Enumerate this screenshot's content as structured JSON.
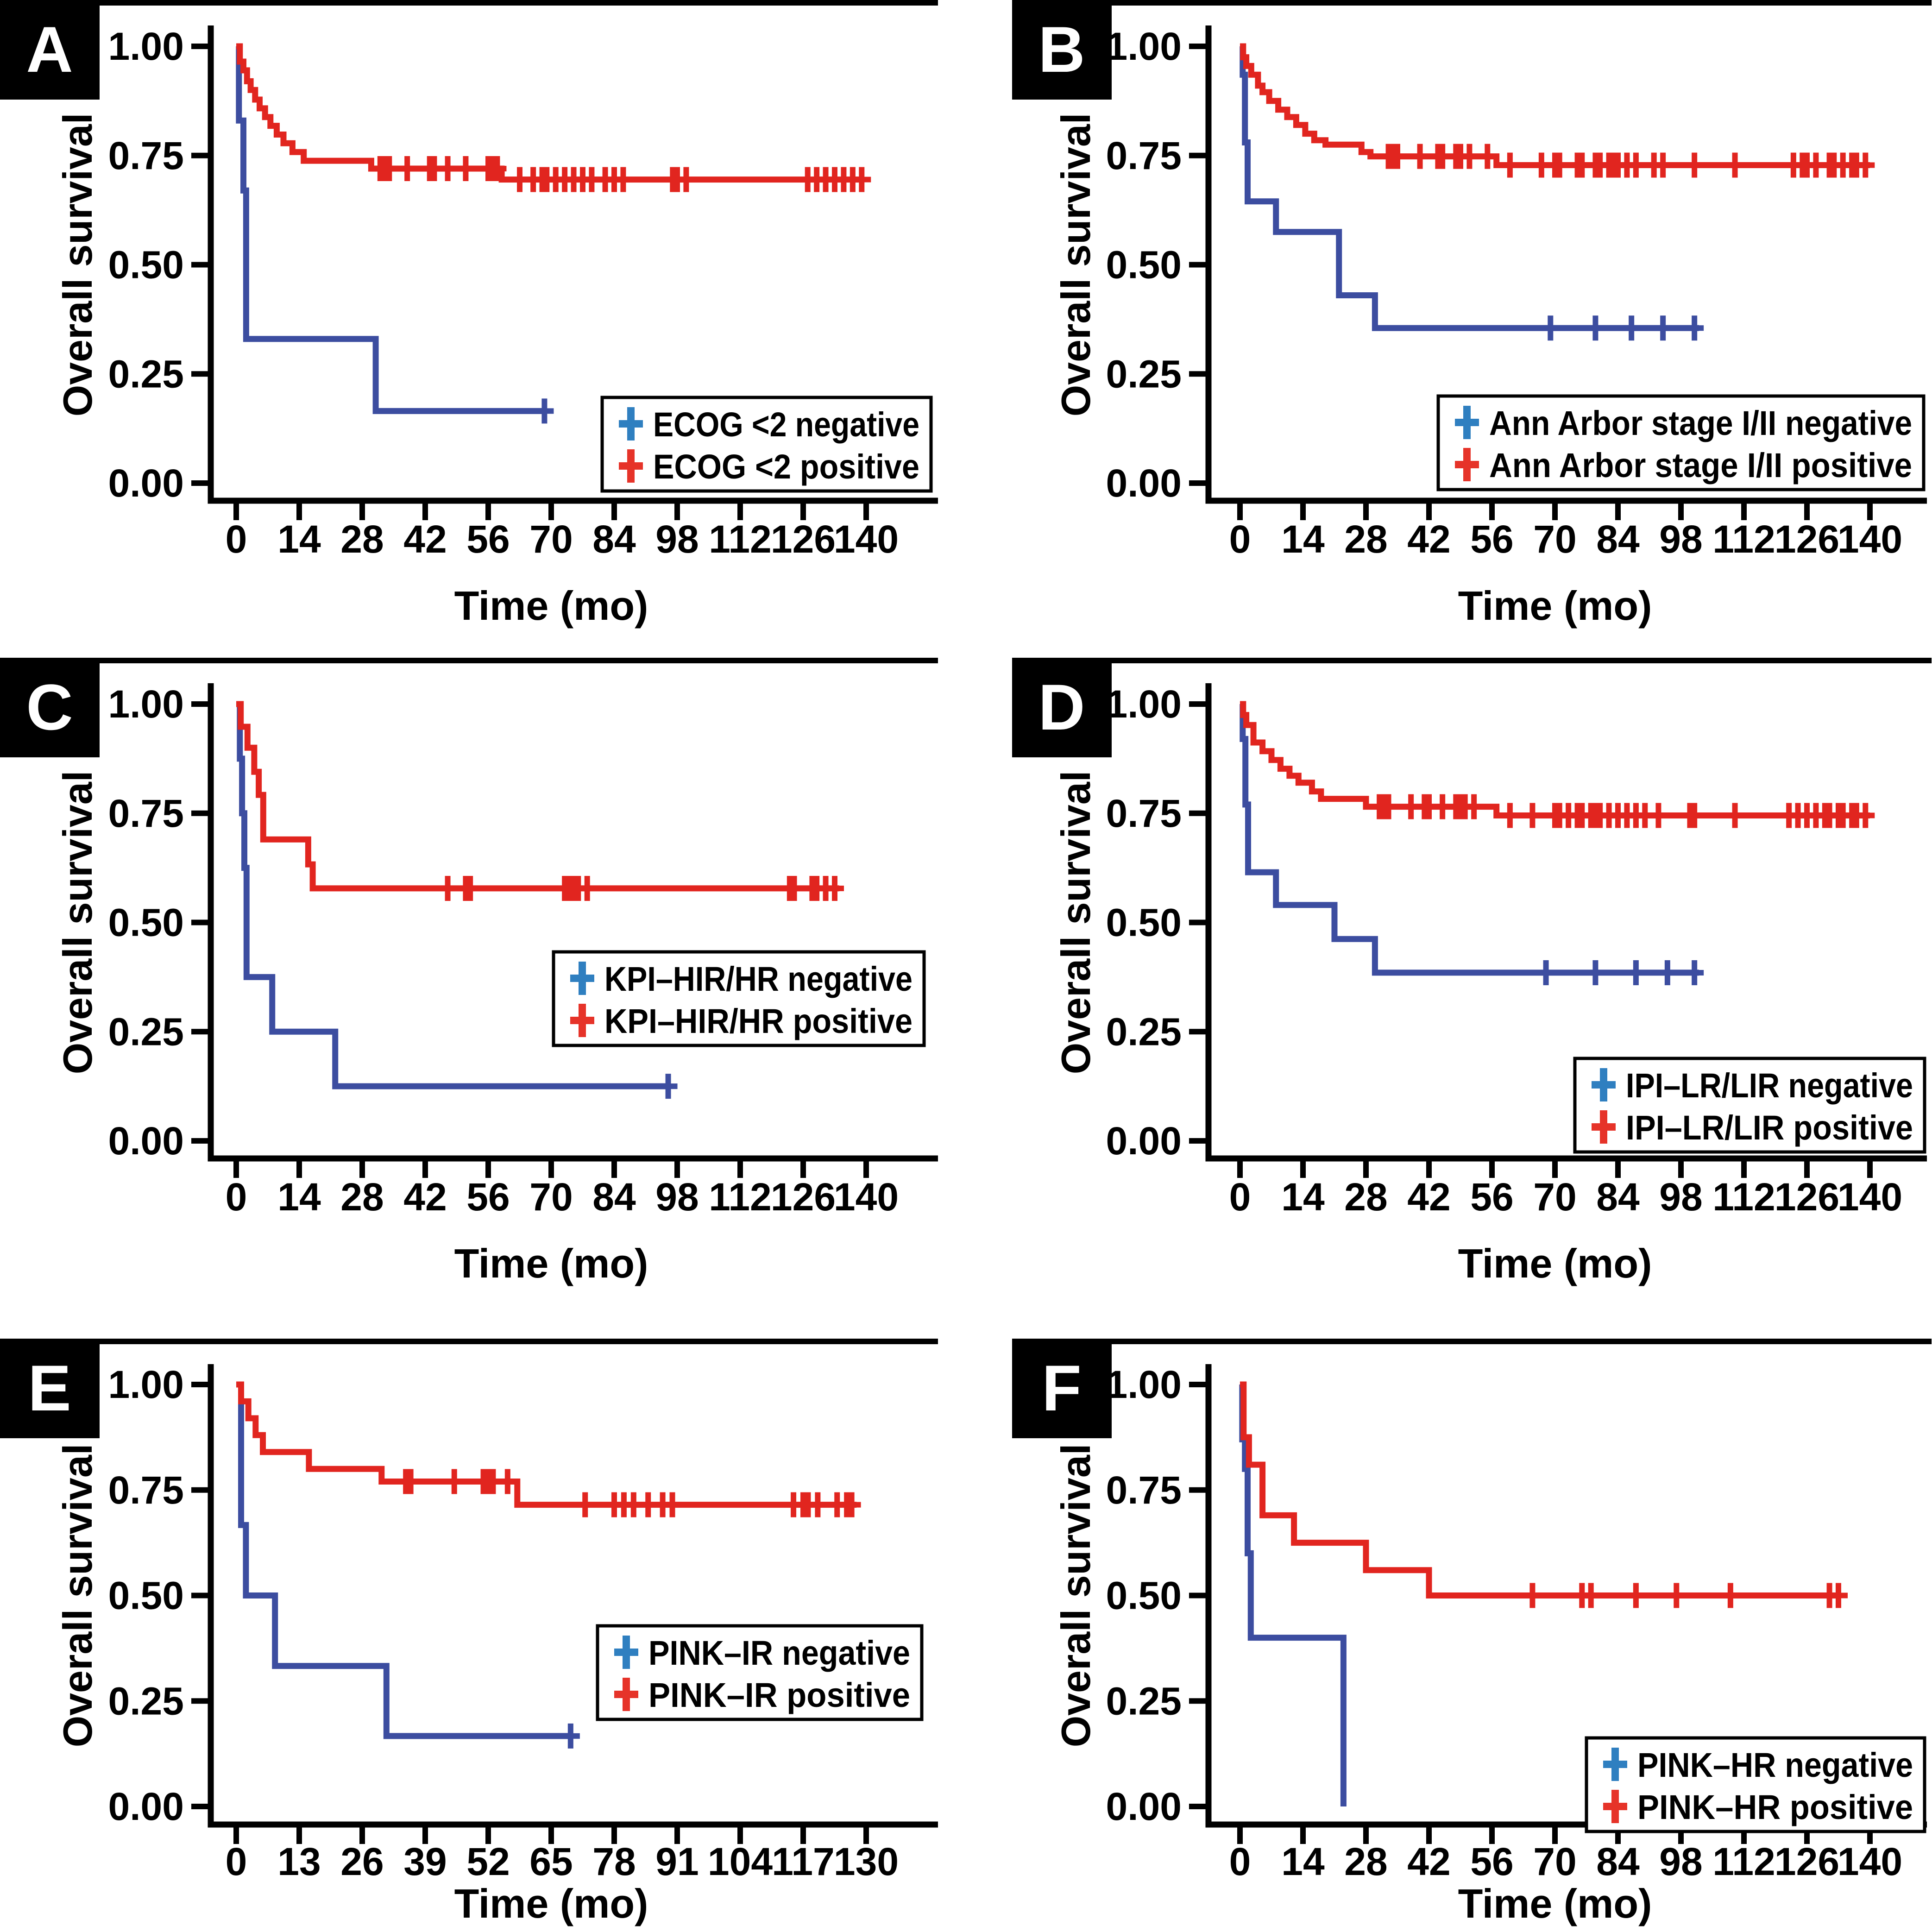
{
  "figure_title": "",
  "y_axis_label": "Overall survival",
  "x_axis_label": "Time (mo)",
  "y_tick_labels": [
    "0.00",
    "0.25",
    "0.50",
    "0.75",
    "1.00"
  ],
  "colors": {
    "negative_line": "#3C4DA0",
    "positive_line": "#E1251F",
    "legend_cross_negative": "#2F7FC0",
    "legend_cross_positive": "#E63329",
    "axis": "#000000",
    "panel_label_bg": "#000000",
    "panel_label_fg": "#FFFFFF",
    "legend_border": "#000000",
    "legend_bg": "#FFFFFF"
  },
  "chart_data": [
    {
      "type": "line",
      "subtype": "kaplan-meier",
      "panel": "A",
      "title": "",
      "xlabel": "Time (mo)",
      "ylabel": "Overall survival",
      "ylim": [
        0,
        1
      ],
      "yticks": [
        0,
        0.25,
        0.5,
        0.75,
        1
      ],
      "ytick_labels": [
        "0.00",
        "0.25",
        "0.50",
        "0.75",
        "1.00"
      ],
      "xticks": [
        0,
        14,
        28,
        42,
        56,
        70,
        84,
        98,
        112,
        126,
        140
      ],
      "series": [
        {
          "name": "ECOG <2 negative",
          "role": "negative",
          "step_points": [
            [
              0,
              1.0
            ],
            [
              0.6,
              0.83
            ],
            [
              1.6,
              0.67
            ],
            [
              2.2,
              0.33
            ],
            [
              31,
              0.165
            ],
            [
              68.5,
              0.165
            ]
          ],
          "censor_times": [
            68.5
          ]
        },
        {
          "name": "ECOG <2 positive",
          "role": "positive",
          "step_points": [
            [
              0,
              1.0
            ],
            [
              0.8,
              0.965
            ],
            [
              1.6,
              0.945
            ],
            [
              2.4,
              0.92
            ],
            [
              3.2,
              0.9
            ],
            [
              4.2,
              0.878
            ],
            [
              5.2,
              0.858
            ],
            [
              6.4,
              0.838
            ],
            [
              7.6,
              0.818
            ],
            [
              9,
              0.798
            ],
            [
              10.5,
              0.778
            ],
            [
              12.5,
              0.758
            ],
            [
              15,
              0.738
            ],
            [
              30,
              0.72
            ],
            [
              59,
              0.695
            ],
            [
              139,
              0.695
            ]
          ],
          "censor_times": [
            32,
            33,
            34,
            38,
            43,
            44,
            47,
            51,
            56,
            57,
            58,
            63,
            66,
            68,
            69,
            71,
            73,
            75,
            77,
            79,
            82,
            84,
            86,
            97,
            98,
            100,
            127,
            129,
            131,
            133,
            135,
            137,
            139
          ]
        }
      ]
    },
    {
      "type": "line",
      "subtype": "kaplan-meier",
      "panel": "B",
      "title": "",
      "xlabel": "Time (mo)",
      "ylabel": "Overall survival",
      "ylim": [
        0,
        1
      ],
      "yticks": [
        0,
        0.25,
        0.5,
        0.75,
        1
      ],
      "ytick_labels": [
        "0.00",
        "0.25",
        "0.50",
        "0.75",
        "1.00"
      ],
      "xticks": [
        0,
        14,
        28,
        42,
        56,
        70,
        84,
        98,
        112,
        126,
        140
      ],
      "series": [
        {
          "name": "Ann Arbor stage I/II negative",
          "role": "negative",
          "step_points": [
            [
              0,
              1.0
            ],
            [
              0.6,
              0.935
            ],
            [
              1.1,
              0.78
            ],
            [
              1.7,
              0.645
            ],
            [
              8,
              0.575
            ],
            [
              22,
              0.43
            ],
            [
              30,
              0.355
            ],
            [
              102,
              0.355
            ]
          ],
          "censor_times": [
            69,
            79,
            87,
            94,
            101
          ]
        },
        {
          "name": "Ann Arbor stage I/II positive",
          "role": "positive",
          "step_points": [
            [
              0,
              1.0
            ],
            [
              0.7,
              0.975
            ],
            [
              1.4,
              0.955
            ],
            [
              2.5,
              0.935
            ],
            [
              4,
              0.91
            ],
            [
              5,
              0.895
            ],
            [
              6.5,
              0.875
            ],
            [
              8.5,
              0.855
            ],
            [
              10.5,
              0.838
            ],
            [
              12.5,
              0.82
            ],
            [
              14.5,
              0.8
            ],
            [
              16.5,
              0.785
            ],
            [
              19,
              0.775
            ],
            [
              27,
              0.758
            ],
            [
              29,
              0.748
            ],
            [
              57,
              0.728
            ],
            [
              140,
              0.728
            ]
          ],
          "censor_times": [
            33,
            34,
            35,
            40,
            44,
            45,
            48,
            49,
            51,
            55,
            60,
            67,
            70,
            71,
            75,
            76,
            79,
            80,
            82,
            83,
            84,
            86,
            88,
            92,
            94,
            101,
            110,
            123,
            125,
            126,
            128,
            131,
            132,
            134,
            136,
            137,
            139
          ]
        }
      ]
    },
    {
      "type": "line",
      "subtype": "kaplan-meier",
      "panel": "C",
      "title": "",
      "xlabel": "Time (mo)",
      "ylabel": "Overall survival",
      "ylim": [
        0,
        1
      ],
      "yticks": [
        0,
        0.25,
        0.5,
        0.75,
        1
      ],
      "ytick_labels": [
        "0.00",
        "0.25",
        "0.50",
        "0.75",
        "1.00"
      ],
      "xticks": [
        0,
        14,
        28,
        42,
        56,
        70,
        84,
        98,
        112,
        126,
        140
      ],
      "series": [
        {
          "name": "KPI–HIR/HR negative",
          "role": "negative",
          "step_points": [
            [
              0,
              1.0
            ],
            [
              0.8,
              0.875
            ],
            [
              1.3,
              0.75
            ],
            [
              1.8,
              0.625
            ],
            [
              2.3,
              0.375
            ],
            [
              8,
              0.25
            ],
            [
              22,
              0.125
            ],
            [
              96,
              0.125
            ]
          ],
          "censor_times": [
            96
          ]
        },
        {
          "name": "KPI–HIR/HR positive",
          "role": "positive",
          "step_points": [
            [
              0,
              1.0
            ],
            [
              1,
              0.948
            ],
            [
              2.5,
              0.9
            ],
            [
              4,
              0.845
            ],
            [
              5,
              0.792
            ],
            [
              6,
              0.69
            ],
            [
              16,
              0.633
            ],
            [
              17,
              0.578
            ],
            [
              134,
              0.578
            ]
          ],
          "censor_times": [
            47,
            51,
            52,
            73,
            74,
            75,
            76,
            78,
            123,
            124,
            128,
            129,
            131,
            133
          ]
        }
      ]
    },
    {
      "type": "line",
      "subtype": "kaplan-meier",
      "panel": "D",
      "title": "",
      "xlabel": "Time (mo)",
      "ylabel": "Overall survival",
      "ylim": [
        0,
        1
      ],
      "yticks": [
        0,
        0.25,
        0.5,
        0.75,
        1
      ],
      "ytick_labels": [
        "0.00",
        "0.25",
        "0.50",
        "0.75",
        "1.00"
      ],
      "xticks": [
        0,
        14,
        28,
        42,
        56,
        70,
        84,
        98,
        112,
        126,
        140
      ],
      "series": [
        {
          "name": "IPI–LR/LIR negative",
          "role": "negative",
          "step_points": [
            [
              0,
              1.0
            ],
            [
              0.6,
              0.92
            ],
            [
              1.2,
              0.77
            ],
            [
              1.8,
              0.615
            ],
            [
              8,
              0.54
            ],
            [
              21,
              0.462
            ],
            [
              30,
              0.385
            ],
            [
              102,
              0.385
            ]
          ],
          "censor_times": [
            68,
            79,
            88,
            95,
            101
          ]
        },
        {
          "name": "IPI–LR/LIR positive",
          "role": "positive",
          "step_points": [
            [
              0,
              1.0
            ],
            [
              0.7,
              0.975
            ],
            [
              1.4,
              0.952
            ],
            [
              3,
              0.912
            ],
            [
              5,
              0.892
            ],
            [
              7,
              0.872
            ],
            [
              9,
              0.852
            ],
            [
              11,
              0.836
            ],
            [
              13,
              0.82
            ],
            [
              16,
              0.8
            ],
            [
              18,
              0.783
            ],
            [
              28,
              0.765
            ],
            [
              57,
              0.745
            ],
            [
              140,
              0.745
            ]
          ],
          "censor_times": [
            31,
            32,
            33,
            38,
            41,
            42,
            45,
            48,
            49,
            50,
            52,
            60,
            65,
            70,
            71,
            73,
            75,
            76,
            78,
            79,
            80,
            82,
            84,
            86,
            88,
            90,
            93,
            100,
            101,
            110,
            122,
            124,
            126,
            128,
            130,
            131,
            133,
            134,
            136,
            137,
            139
          ]
        }
      ]
    },
    {
      "type": "line",
      "subtype": "kaplan-meier",
      "panel": "E",
      "title": "",
      "xlabel": "Time (mo)",
      "ylabel": "Overall survival",
      "ylim": [
        0,
        1
      ],
      "yticks": [
        0,
        0.25,
        0.5,
        0.75,
        1
      ],
      "ytick_labels": [
        "0.00",
        "0.25",
        "0.50",
        "0.75",
        "1.00"
      ],
      "xticks": [
        0,
        13,
        26,
        39,
        52,
        65,
        78,
        91,
        104,
        117,
        130
      ],
      "series": [
        {
          "name": "PINK–IR negative",
          "role": "negative",
          "step_points": [
            [
              0,
              1.0
            ],
            [
              1,
              0.667
            ],
            [
              2,
              0.5
            ],
            [
              8,
              0.333
            ],
            [
              31,
              0.167
            ],
            [
              69,
              0.167
            ]
          ],
          "censor_times": [
            69
          ]
        },
        {
          "name": "PINK–IR positive",
          "role": "positive",
          "step_points": [
            [
              0,
              1.0
            ],
            [
              1,
              0.96
            ],
            [
              2.5,
              0.92
            ],
            [
              4,
              0.88
            ],
            [
              5.5,
              0.84
            ],
            [
              15,
              0.8
            ],
            [
              30,
              0.77
            ],
            [
              58,
              0.715
            ],
            [
              128,
              0.715
            ]
          ],
          "censor_times": [
            35,
            36,
            45,
            51,
            52,
            53,
            56,
            72,
            78,
            80,
            82,
            85,
            88,
            90,
            115,
            117,
            118,
            120,
            124,
            126,
            127
          ]
        }
      ]
    },
    {
      "type": "line",
      "subtype": "kaplan-meier",
      "panel": "F",
      "title": "",
      "xlabel": "Time (mo)",
      "ylabel": "Overall survival",
      "ylim": [
        0,
        1
      ],
      "yticks": [
        0,
        0.25,
        0.5,
        0.75,
        1
      ],
      "ytick_labels": [
        "0.00",
        "0.25",
        "0.50",
        "0.75",
        "1.00"
      ],
      "xticks": [
        0,
        14,
        28,
        42,
        56,
        70,
        84,
        98,
        112,
        126,
        140
      ],
      "series": [
        {
          "name": "PINK–HR negative",
          "role": "negative",
          "step_points": [
            [
              0,
              1.0
            ],
            [
              0.5,
              0.87
            ],
            [
              1.1,
              0.8
            ],
            [
              1.7,
              0.6
            ],
            [
              2.4,
              0.4
            ],
            [
              23,
              0.4
            ],
            [
              23,
              0.0
            ]
          ],
          "censor_times": []
        },
        {
          "name": "PINK–HR positive",
          "role": "positive",
          "step_points": [
            [
              0,
              1.0
            ],
            [
              0.8,
              0.875
            ],
            [
              2,
              0.81
            ],
            [
              5,
              0.69
            ],
            [
              12,
              0.625
            ],
            [
              28,
              0.56
            ],
            [
              42,
              0.5
            ],
            [
              133,
              0.5
            ]
          ],
          "censor_times": [
            65,
            76,
            78,
            88,
            97,
            109,
            131,
            133
          ]
        }
      ]
    }
  ]
}
